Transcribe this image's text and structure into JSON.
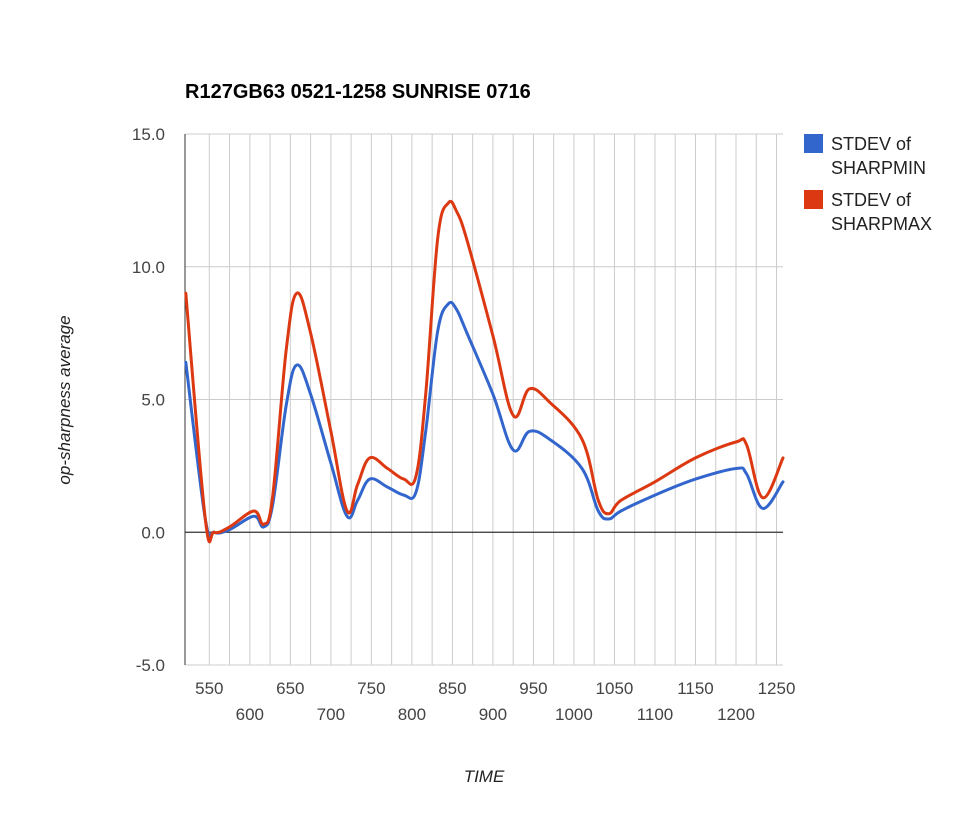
{
  "chart_data": {
    "type": "line",
    "title": "R127GB63 0521-1258 SUNRISE 0716",
    "xlabel": "TIME",
    "ylabel": "op-sharpness average",
    "xlim": [
      520,
      1258
    ],
    "ylim": [
      -5,
      15
    ],
    "x_ticks_top": [
      "550",
      "650",
      "750",
      "850",
      "950",
      "1050",
      "1150",
      "1250"
    ],
    "x_ticks_bottom": [
      "600",
      "700",
      "800",
      "900",
      "1000",
      "1100",
      "1200"
    ],
    "y_ticks": [
      "-5.0",
      "0.0",
      "5.0",
      "10.0",
      "15.0"
    ],
    "grid": true,
    "legend_position": "right",
    "x": [
      521,
      545,
      556,
      575,
      605,
      617,
      628,
      645,
      658,
      675,
      700,
      720,
      733,
      748,
      770,
      790,
      805,
      817,
      832,
      845,
      855,
      868,
      900,
      925,
      945,
      970,
      1010,
      1030,
      1043,
      1058,
      1100,
      1150,
      1200,
      1213,
      1233,
      1258
    ],
    "series": [
      {
        "name": "STDEV of SHARPMIN",
        "color": "#3366cc",
        "values": [
          6.4,
          0.5,
          0.0,
          0.1,
          0.6,
          0.2,
          1.0,
          4.8,
          6.3,
          5.2,
          2.6,
          0.6,
          1.2,
          2.0,
          1.7,
          1.4,
          1.5,
          3.8,
          7.6,
          8.6,
          8.4,
          7.5,
          5.2,
          3.1,
          3.8,
          3.5,
          2.4,
          0.8,
          0.5,
          0.8,
          1.4,
          2.0,
          2.4,
          2.2,
          0.9,
          1.9
        ]
      },
      {
        "name": "STDEV of SHARPMAX",
        "color": "#dc3912",
        "values": [
          9.0,
          0.5,
          0.0,
          0.2,
          0.8,
          0.3,
          1.3,
          6.9,
          9.0,
          7.5,
          3.8,
          0.8,
          1.8,
          2.8,
          2.4,
          2.0,
          2.1,
          5.2,
          11.1,
          12.4,
          12.1,
          11.0,
          7.4,
          4.4,
          5.4,
          4.9,
          3.5,
          1.2,
          0.7,
          1.2,
          1.9,
          2.8,
          3.4,
          3.3,
          1.3,
          2.8
        ]
      }
    ]
  }
}
